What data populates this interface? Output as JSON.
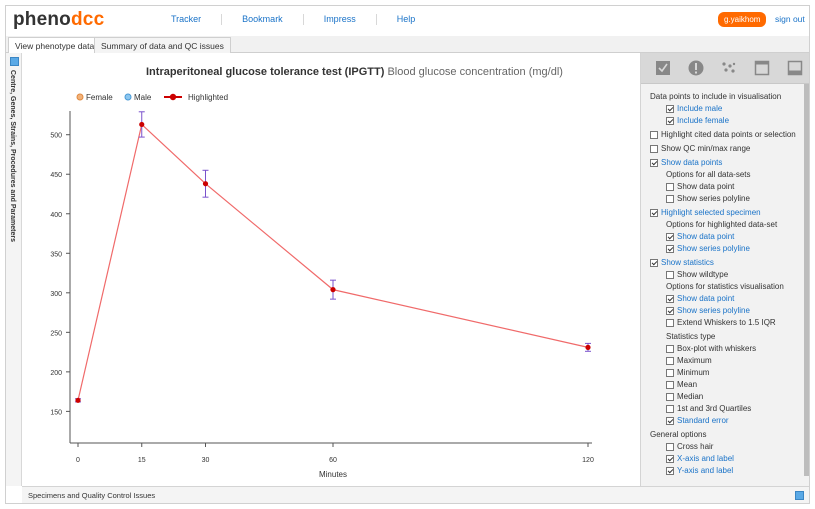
{
  "logo": {
    "part1": "pheno",
    "part2": "dcc"
  },
  "nav": [
    "Tracker",
    "Bookmark",
    "Impress",
    "Help"
  ],
  "user": {
    "name": "g.yaikhom",
    "signout": "sign out"
  },
  "tabs": [
    {
      "label": "View phenotype data",
      "active": true
    },
    {
      "label": "Summary of data and QC issues",
      "active": false
    }
  ],
  "vbar_label": "Centre, Genes, Strains, Procedures and Parameters",
  "footer_label": "Specimens and Quality Control Issues",
  "colors": {
    "accent": "#ff6a00",
    "link": "#1a73c8",
    "series": "#f06a6a",
    "point": "#cc0000",
    "error": "#7a52cc"
  },
  "panel_icons": [
    "checkbox-icon",
    "alert-icon",
    "scatter-icon",
    "window-icon",
    "panel-bottom-icon"
  ],
  "chart_data": {
    "type": "line",
    "title": "Intraperitoneal glucose tolerance test (IPGTT)",
    "subtitle": "Blood glucose concentration (mg/dl)",
    "xlabel": "Minutes",
    "ylabel": "",
    "x": [
      0,
      15,
      30,
      60,
      120
    ],
    "xticks": [
      0,
      15,
      30,
      60,
      120
    ],
    "yticks": [
      150,
      200,
      250,
      300,
      350,
      400,
      450,
      500
    ],
    "xlim": [
      0,
      120
    ],
    "ylim": [
      110,
      530
    ],
    "legend": {
      "placement": "top-left",
      "entries": [
        "Female",
        "Male",
        "Highlighted"
      ]
    },
    "series": [
      {
        "name": "Highlighted",
        "values": [
          164,
          513,
          438,
          304,
          231
        ],
        "error": [
          2,
          16,
          17,
          12,
          5
        ]
      }
    ],
    "grid": false
  },
  "options": [
    {
      "kind": "head",
      "label": "Data points to include in visualisation",
      "indent": 0
    },
    {
      "kind": "cb",
      "label": "Include male",
      "checked": true,
      "indent": 1
    },
    {
      "kind": "cb",
      "label": "Include female",
      "checked": true,
      "indent": 1
    },
    {
      "kind": "cb",
      "label": "Highlight cited data points or selection",
      "checked": false,
      "indent": 0,
      "gap": true
    },
    {
      "kind": "cb",
      "label": "Show QC min/max range",
      "checked": false,
      "indent": 0,
      "gap": true
    },
    {
      "kind": "cb",
      "label": "Show data points",
      "checked": true,
      "indent": 0,
      "gap": true
    },
    {
      "kind": "head",
      "label": "Options for all data-sets",
      "indent": 1
    },
    {
      "kind": "cb",
      "label": "Show data point",
      "checked": false,
      "indent": 1
    },
    {
      "kind": "cb",
      "label": "Show series polyline",
      "checked": false,
      "indent": 1
    },
    {
      "kind": "cb",
      "label": "Highlight selected specimen",
      "checked": true,
      "indent": 0,
      "gap": true
    },
    {
      "kind": "head",
      "label": "Options for highlighted data-set",
      "indent": 1
    },
    {
      "kind": "cb",
      "label": "Show data point",
      "checked": true,
      "indent": 1
    },
    {
      "kind": "cb",
      "label": "Show series polyline",
      "checked": true,
      "indent": 1
    },
    {
      "kind": "cb",
      "label": "Show statistics",
      "checked": true,
      "indent": 0,
      "gap": true
    },
    {
      "kind": "cb",
      "label": "Show wildtype",
      "checked": false,
      "indent": 1
    },
    {
      "kind": "head",
      "label": "Options for statistics visualisation",
      "indent": 1
    },
    {
      "kind": "cb",
      "label": "Show data point",
      "checked": true,
      "indent": 1
    },
    {
      "kind": "cb",
      "label": "Show series polyline",
      "checked": true,
      "indent": 1
    },
    {
      "kind": "cb",
      "label": "Extend Whiskers to 1.5 IQR",
      "checked": false,
      "indent": 1
    },
    {
      "kind": "head",
      "label": "Statistics type",
      "indent": 1,
      "gap": true
    },
    {
      "kind": "cb",
      "label": "Box-plot with whiskers",
      "checked": false,
      "indent": 1
    },
    {
      "kind": "cb",
      "label": "Maximum",
      "checked": false,
      "indent": 1
    },
    {
      "kind": "cb",
      "label": "Minimum",
      "checked": false,
      "indent": 1
    },
    {
      "kind": "cb",
      "label": "Mean",
      "checked": false,
      "indent": 1
    },
    {
      "kind": "cb",
      "label": "Median",
      "checked": false,
      "indent": 1
    },
    {
      "kind": "cb",
      "label": "1st and 3rd Quartiles",
      "checked": false,
      "indent": 1
    },
    {
      "kind": "cb",
      "label": "Standard error",
      "checked": true,
      "indent": 1
    },
    {
      "kind": "head",
      "label": "General options",
      "indent": 0,
      "gap": true
    },
    {
      "kind": "cb",
      "label": "Cross hair",
      "checked": false,
      "indent": 1
    },
    {
      "kind": "cb",
      "label": "X-axis and label",
      "checked": true,
      "indent": 1
    },
    {
      "kind": "cb",
      "label": "Y-axis and label",
      "checked": true,
      "indent": 1
    }
  ]
}
